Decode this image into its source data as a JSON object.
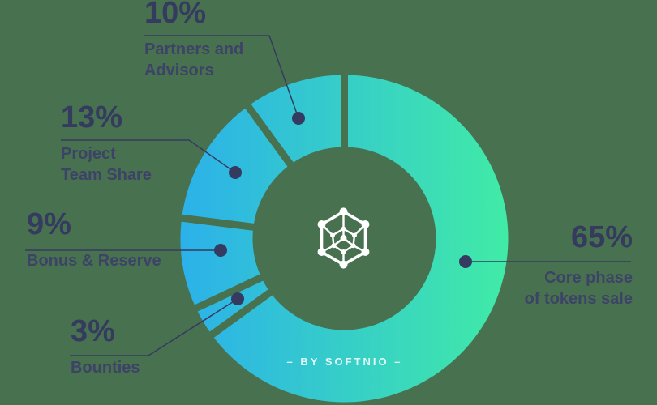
{
  "chart_data": {
    "type": "pie",
    "style": "donut",
    "direction": "clockwise",
    "start_angle_deg": 0,
    "categories": [
      "Core phase of tokens sale",
      "Bounties",
      "Bonus & Reserve",
      "Project Team Share",
      "Partners and Advisors"
    ],
    "values": [
      65,
      3,
      9,
      13,
      10
    ],
    "segments": [
      {
        "label": "Core phase of tokens sale",
        "value": 65,
        "pct": "65%",
        "display": "Core phase\nof tokens sale"
      },
      {
        "label": "Bounties",
        "value": 3,
        "pct": "3%",
        "display": "Bounties"
      },
      {
        "label": "Bonus & Reserve",
        "value": 9,
        "pct": "9%",
        "display": "Bonus & Reserve"
      },
      {
        "label": "Project Team Share",
        "value": 13,
        "pct": "13%",
        "display": "Project\nTeam Share"
      },
      {
        "label": "Partners and Advisors",
        "value": 10,
        "pct": "10%",
        "display": "Partners and\nAdvisors"
      }
    ],
    "legend": "none",
    "grid": false,
    "watermark": "– BY SOFTNIO –",
    "colors": {
      "gradient_from": "#2bb1ea",
      "gradient_to": "#41eba6",
      "label_number": "#343b5e",
      "label_text": "#3d4366",
      "connector": "#353b60",
      "background": "#487150",
      "logo": "#ffffff"
    }
  }
}
